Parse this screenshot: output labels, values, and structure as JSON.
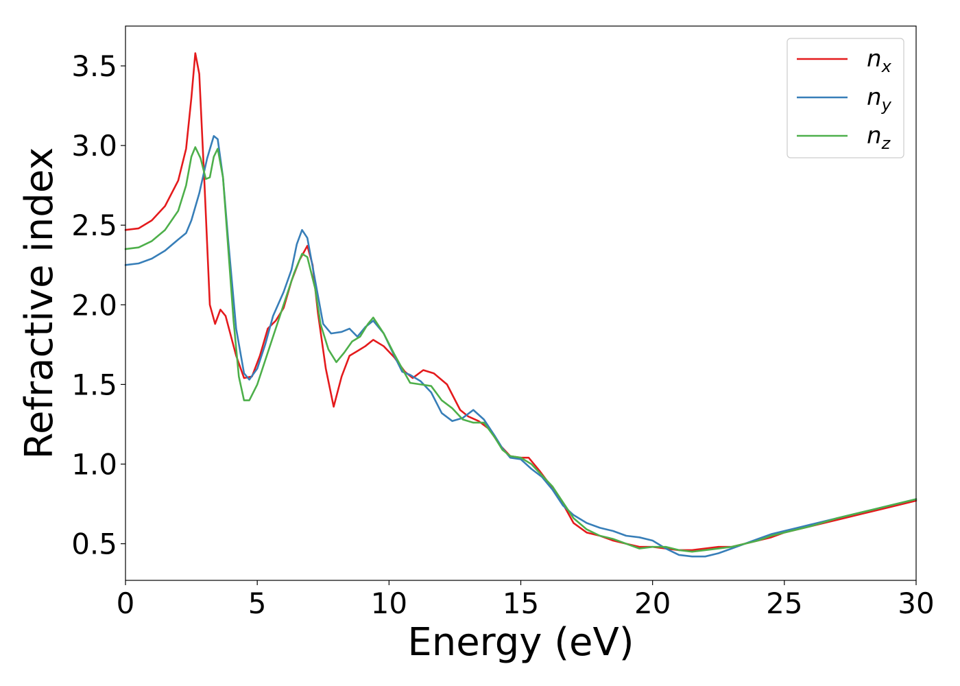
{
  "chart_data": {
    "type": "line",
    "xlabel": "Energy (eV)",
    "ylabel": "Refractive index",
    "xlim": [
      0,
      30
    ],
    "ylim": [
      0.27,
      3.75
    ],
    "xticks": [
      0,
      5,
      10,
      15,
      20,
      25,
      30
    ],
    "xtick_labels": [
      "0",
      "5",
      "10",
      "15",
      "20",
      "25",
      "30"
    ],
    "yticks": [
      0.5,
      1.0,
      1.5,
      2.0,
      2.5,
      3.0,
      3.5
    ],
    "ytick_labels": [
      "0.5",
      "1.0",
      "1.5",
      "2.0",
      "2.5",
      "3.0",
      "3.5"
    ],
    "grid": false,
    "legend_position": "top-right",
    "series": [
      {
        "name": "n_x",
        "label_main": "n",
        "label_sub": "x",
        "color": "#e41a1c",
        "points": [
          [
            0,
            2.47
          ],
          [
            0.5,
            2.48
          ],
          [
            1.0,
            2.53
          ],
          [
            1.5,
            2.62
          ],
          [
            2.0,
            2.78
          ],
          [
            2.3,
            2.98
          ],
          [
            2.5,
            3.3
          ],
          [
            2.65,
            3.58
          ],
          [
            2.8,
            3.45
          ],
          [
            3.0,
            2.75
          ],
          [
            3.2,
            2.0
          ],
          [
            3.4,
            1.88
          ],
          [
            3.6,
            1.97
          ],
          [
            3.8,
            1.93
          ],
          [
            4.2,
            1.68
          ],
          [
            4.5,
            1.54
          ],
          [
            4.8,
            1.55
          ],
          [
            5.1,
            1.68
          ],
          [
            5.4,
            1.85
          ],
          [
            5.7,
            1.9
          ],
          [
            6.0,
            1.98
          ],
          [
            6.3,
            2.15
          ],
          [
            6.6,
            2.28
          ],
          [
            6.9,
            2.37
          ],
          [
            7.1,
            2.25
          ],
          [
            7.3,
            1.95
          ],
          [
            7.6,
            1.6
          ],
          [
            7.9,
            1.36
          ],
          [
            8.2,
            1.55
          ],
          [
            8.5,
            1.68
          ],
          [
            8.8,
            1.71
          ],
          [
            9.1,
            1.74
          ],
          [
            9.4,
            1.78
          ],
          [
            9.8,
            1.74
          ],
          [
            10.2,
            1.67
          ],
          [
            10.6,
            1.58
          ],
          [
            10.9,
            1.54
          ],
          [
            11.3,
            1.59
          ],
          [
            11.7,
            1.57
          ],
          [
            12.2,
            1.5
          ],
          [
            12.7,
            1.34
          ],
          [
            13.0,
            1.3
          ],
          [
            13.4,
            1.27
          ],
          [
            13.8,
            1.22
          ],
          [
            14.2,
            1.12
          ],
          [
            14.6,
            1.05
          ],
          [
            15.0,
            1.04
          ],
          [
            15.3,
            1.04
          ],
          [
            15.7,
            0.96
          ],
          [
            16.2,
            0.85
          ],
          [
            16.6,
            0.75
          ],
          [
            17.0,
            0.63
          ],
          [
            17.5,
            0.57
          ],
          [
            18.0,
            0.55
          ],
          [
            18.5,
            0.52
          ],
          [
            19.0,
            0.5
          ],
          [
            19.5,
            0.48
          ],
          [
            20.0,
            0.48
          ],
          [
            20.5,
            0.47
          ],
          [
            21.0,
            0.46
          ],
          [
            21.5,
            0.46
          ],
          [
            22.0,
            0.47
          ],
          [
            22.5,
            0.48
          ],
          [
            23.0,
            0.48
          ],
          [
            23.5,
            0.5
          ],
          [
            24.0,
            0.52
          ],
          [
            24.5,
            0.54
          ],
          [
            25.0,
            0.57
          ],
          [
            25.5,
            0.59
          ],
          [
            26.0,
            0.61
          ],
          [
            27.0,
            0.65
          ],
          [
            28.0,
            0.69
          ],
          [
            29.0,
            0.73
          ],
          [
            30.0,
            0.77
          ]
        ]
      },
      {
        "name": "n_y",
        "label_main": "n",
        "label_sub": "y",
        "color": "#377eb8",
        "points": [
          [
            0,
            2.25
          ],
          [
            0.5,
            2.26
          ],
          [
            1.0,
            2.29
          ],
          [
            1.5,
            2.34
          ],
          [
            2.0,
            2.41
          ],
          [
            2.3,
            2.45
          ],
          [
            2.5,
            2.53
          ],
          [
            2.8,
            2.7
          ],
          [
            3.1,
            2.92
          ],
          [
            3.35,
            3.06
          ],
          [
            3.5,
            3.04
          ],
          [
            3.7,
            2.8
          ],
          [
            3.9,
            2.4
          ],
          [
            4.2,
            1.85
          ],
          [
            4.5,
            1.57
          ],
          [
            4.7,
            1.53
          ],
          [
            5.0,
            1.6
          ],
          [
            5.3,
            1.75
          ],
          [
            5.6,
            1.93
          ],
          [
            6.0,
            2.08
          ],
          [
            6.3,
            2.22
          ],
          [
            6.5,
            2.38
          ],
          [
            6.7,
            2.47
          ],
          [
            6.9,
            2.42
          ],
          [
            7.2,
            2.15
          ],
          [
            7.5,
            1.88
          ],
          [
            7.8,
            1.82
          ],
          [
            8.2,
            1.83
          ],
          [
            8.5,
            1.85
          ],
          [
            8.8,
            1.8
          ],
          [
            9.1,
            1.86
          ],
          [
            9.4,
            1.9
          ],
          [
            9.8,
            1.82
          ],
          [
            10.2,
            1.68
          ],
          [
            10.5,
            1.58
          ],
          [
            10.8,
            1.56
          ],
          [
            11.2,
            1.52
          ],
          [
            11.6,
            1.45
          ],
          [
            12.0,
            1.32
          ],
          [
            12.4,
            1.27
          ],
          [
            12.8,
            1.29
          ],
          [
            13.2,
            1.34
          ],
          [
            13.6,
            1.28
          ],
          [
            14.0,
            1.18
          ],
          [
            14.3,
            1.1
          ],
          [
            14.6,
            1.04
          ],
          [
            15.0,
            1.03
          ],
          [
            15.4,
            0.97
          ],
          [
            15.8,
            0.92
          ],
          [
            16.2,
            0.84
          ],
          [
            16.6,
            0.74
          ],
          [
            17.0,
            0.68
          ],
          [
            17.5,
            0.63
          ],
          [
            18.0,
            0.6
          ],
          [
            18.5,
            0.58
          ],
          [
            19.0,
            0.55
          ],
          [
            19.5,
            0.54
          ],
          [
            20.0,
            0.52
          ],
          [
            20.5,
            0.47
          ],
          [
            21.0,
            0.43
          ],
          [
            21.5,
            0.42
          ],
          [
            22.0,
            0.42
          ],
          [
            22.5,
            0.44
          ],
          [
            23.0,
            0.47
          ],
          [
            23.5,
            0.5
          ],
          [
            24.0,
            0.53
          ],
          [
            24.5,
            0.56
          ],
          [
            25.0,
            0.58
          ],
          [
            25.5,
            0.6
          ],
          [
            26.0,
            0.62
          ],
          [
            27.0,
            0.66
          ],
          [
            28.0,
            0.7
          ],
          [
            29.0,
            0.74
          ],
          [
            30.0,
            0.78
          ]
        ]
      },
      {
        "name": "n_z",
        "label_main": "n",
        "label_sub": "z",
        "color": "#4daf4a",
        "points": [
          [
            0,
            2.35
          ],
          [
            0.5,
            2.36
          ],
          [
            1.0,
            2.4
          ],
          [
            1.5,
            2.47
          ],
          [
            2.0,
            2.59
          ],
          [
            2.3,
            2.75
          ],
          [
            2.5,
            2.93
          ],
          [
            2.65,
            2.99
          ],
          [
            2.85,
            2.92
          ],
          [
            3.05,
            2.79
          ],
          [
            3.2,
            2.8
          ],
          [
            3.35,
            2.93
          ],
          [
            3.5,
            2.98
          ],
          [
            3.7,
            2.8
          ],
          [
            3.9,
            2.35
          ],
          [
            4.1,
            1.9
          ],
          [
            4.3,
            1.55
          ],
          [
            4.5,
            1.4
          ],
          [
            4.7,
            1.4
          ],
          [
            5.0,
            1.5
          ],
          [
            5.4,
            1.7
          ],
          [
            5.8,
            1.9
          ],
          [
            6.1,
            2.05
          ],
          [
            6.4,
            2.2
          ],
          [
            6.7,
            2.32
          ],
          [
            6.9,
            2.3
          ],
          [
            7.2,
            2.1
          ],
          [
            7.4,
            1.88
          ],
          [
            7.7,
            1.72
          ],
          [
            8.0,
            1.64
          ],
          [
            8.3,
            1.7
          ],
          [
            8.6,
            1.77
          ],
          [
            8.9,
            1.8
          ],
          [
            9.2,
            1.88
          ],
          [
            9.4,
            1.92
          ],
          [
            9.8,
            1.82
          ],
          [
            10.2,
            1.69
          ],
          [
            10.5,
            1.6
          ],
          [
            10.8,
            1.51
          ],
          [
            11.2,
            1.5
          ],
          [
            11.6,
            1.49
          ],
          [
            12.0,
            1.4
          ],
          [
            12.4,
            1.35
          ],
          [
            12.8,
            1.28
          ],
          [
            13.2,
            1.26
          ],
          [
            13.6,
            1.26
          ],
          [
            14.0,
            1.17
          ],
          [
            14.3,
            1.09
          ],
          [
            14.6,
            1.05
          ],
          [
            15.0,
            1.04
          ],
          [
            15.4,
            1.0
          ],
          [
            15.8,
            0.93
          ],
          [
            16.2,
            0.86
          ],
          [
            16.6,
            0.76
          ],
          [
            17.0,
            0.66
          ],
          [
            17.5,
            0.59
          ],
          [
            18.0,
            0.55
          ],
          [
            18.5,
            0.53
          ],
          [
            19.0,
            0.5
          ],
          [
            19.5,
            0.47
          ],
          [
            20.0,
            0.48
          ],
          [
            20.5,
            0.48
          ],
          [
            21.0,
            0.46
          ],
          [
            21.5,
            0.45
          ],
          [
            22.0,
            0.46
          ],
          [
            22.5,
            0.47
          ],
          [
            23.0,
            0.48
          ],
          [
            23.5,
            0.5
          ],
          [
            24.0,
            0.52
          ],
          [
            24.5,
            0.55
          ],
          [
            25.0,
            0.57
          ],
          [
            25.5,
            0.59
          ],
          [
            26.0,
            0.61
          ],
          [
            27.0,
            0.66
          ],
          [
            28.0,
            0.7
          ],
          [
            29.0,
            0.74
          ],
          [
            30.0,
            0.78
          ]
        ]
      }
    ]
  }
}
